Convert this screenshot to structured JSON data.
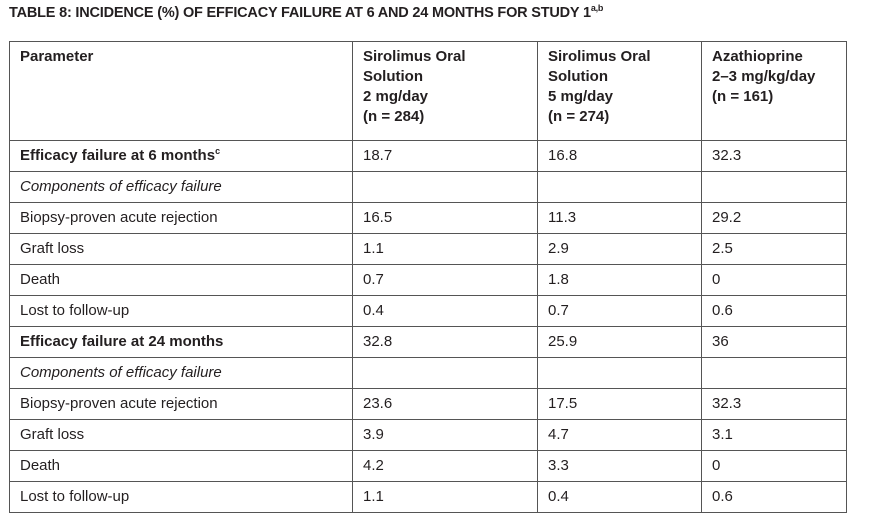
{
  "title": {
    "text": "TABLE 8: INCIDENCE (%) OF EFFICACY FAILURE AT 6 AND 24 MONTHS FOR STUDY 1",
    "sup": "a,b"
  },
  "table": {
    "header": [
      [
        "Parameter"
      ],
      [
        "Sirolimus Oral",
        "Solution",
        "2 mg/day",
        "(n = 284)"
      ],
      [
        "Sirolimus Oral",
        "Solution",
        "5 mg/day",
        "(n = 274)"
      ],
      [
        "Azathioprine",
        "2–3 mg/kg/day",
        "(n = 161)"
      ]
    ],
    "rows": [
      {
        "label": "Efficacy failure at 6 months",
        "sup": "c",
        "style": "bold",
        "values": [
          "18.7",
          "16.8",
          "32.3"
        ]
      },
      {
        "label": "Components of efficacy failure",
        "style": "italic",
        "values": []
      },
      {
        "label": "Biopsy-proven acute rejection",
        "style": "normal",
        "values": [
          "16.5",
          "11.3",
          "29.2"
        ]
      },
      {
        "label": "Graft loss",
        "style": "normal",
        "values": [
          "1.1",
          "2.9",
          "2.5"
        ]
      },
      {
        "label": "Death",
        "style": "normal",
        "values": [
          "0.7",
          "1.8",
          "0"
        ]
      },
      {
        "label": "Lost to follow-up",
        "style": "normal",
        "values": [
          "0.4",
          "0.7",
          "0.6"
        ]
      },
      {
        "label": "Efficacy failure at 24 months",
        "style": "bold",
        "values": [
          "32.8",
          "25.9",
          "36"
        ]
      },
      {
        "label": "Components of efficacy failure",
        "style": "italic",
        "values": []
      },
      {
        "label": "Biopsy-proven acute rejection",
        "style": "normal",
        "values": [
          "23.6",
          "17.5",
          "32.3"
        ]
      },
      {
        "label": "Graft loss",
        "style": "normal",
        "values": [
          "3.9",
          "4.7",
          "3.1"
        ]
      },
      {
        "label": "Death",
        "style": "normal",
        "values": [
          "4.2",
          "3.3",
          "0"
        ]
      },
      {
        "label": "Lost to follow-up",
        "style": "normal",
        "values": [
          "1.1",
          "0.4",
          "0.6"
        ]
      }
    ]
  }
}
